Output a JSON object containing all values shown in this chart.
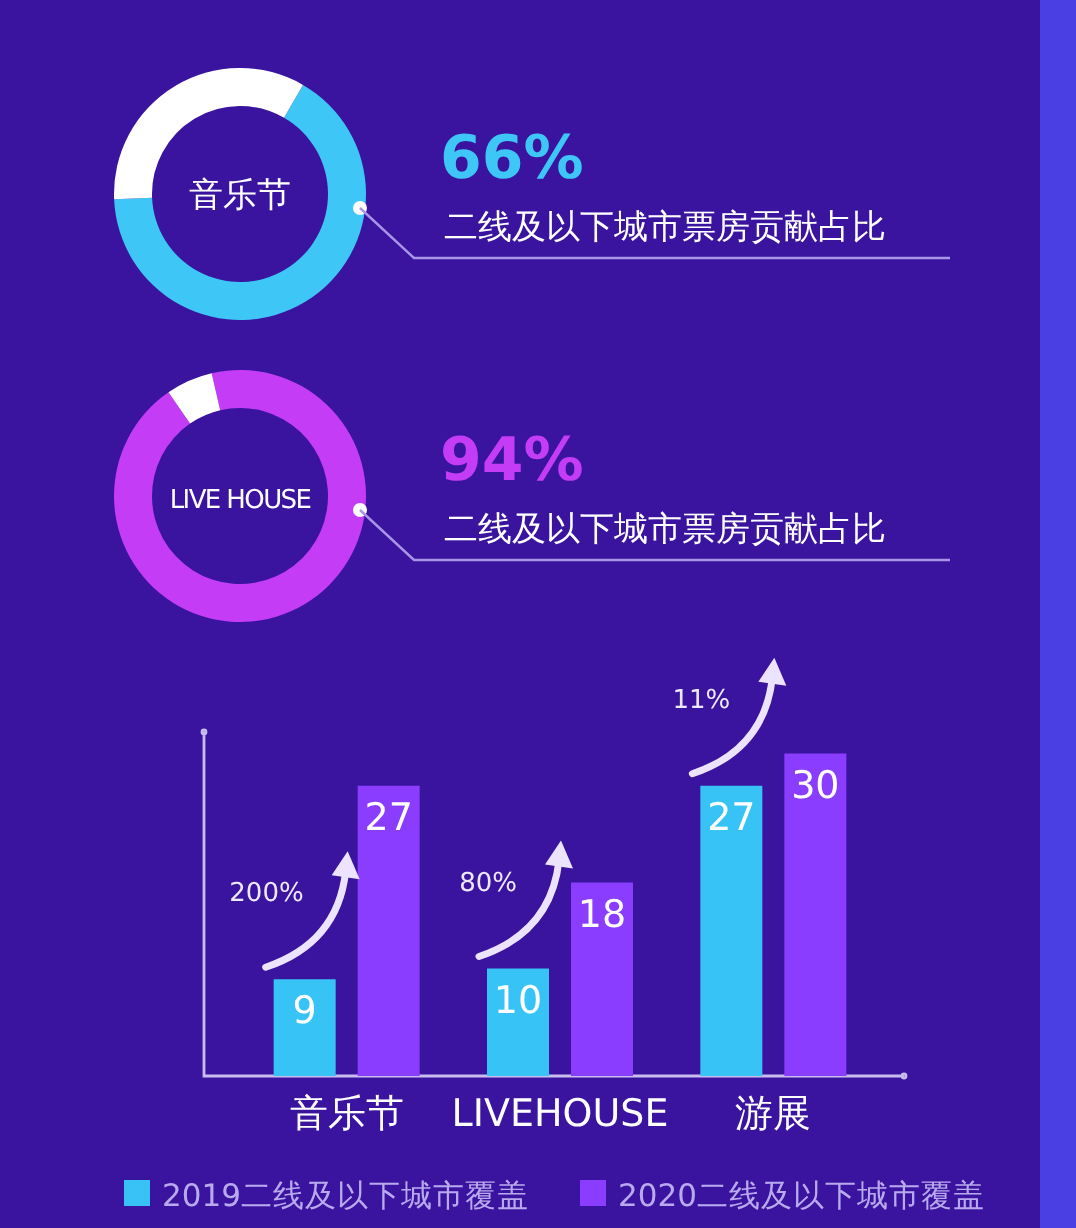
{
  "chart_data": [
    {
      "type": "donut",
      "title": "音乐节",
      "categories": [
        "二线及以下城市票房贡献占比",
        null
      ],
      "values": [
        66,
        34
      ],
      "colors": [
        "#3ec6f7",
        "#ffffff"
      ],
      "value_labels": [
        "66%",
        null
      ]
    },
    {
      "type": "donut",
      "title": "LIVE HOUSE",
      "categories": [
        "二线及以下城市票房贡献占比",
        null
      ],
      "values": [
        94,
        6
      ],
      "colors": [
        "#c43cf5",
        "#ffffff"
      ],
      "value_labels": [
        "94%",
        null
      ]
    },
    {
      "type": "bar",
      "categories": [
        "音乐节",
        "LIVEHOUSE",
        "游展"
      ],
      "ylim": [
        0,
        32
      ],
      "data_labels": true,
      "legend": "bottom",
      "series": [
        {
          "name": "2019二线及以下城市覆盖",
          "color": "#37c3f6",
          "values": [
            9,
            10,
            27
          ]
        },
        {
          "name": "2020二线及以下城市覆盖",
          "color": "#8a3cff",
          "values": [
            27,
            18,
            30
          ]
        }
      ],
      "annotations": [
        "200%",
        "80%",
        "11%"
      ]
    }
  ]
}
